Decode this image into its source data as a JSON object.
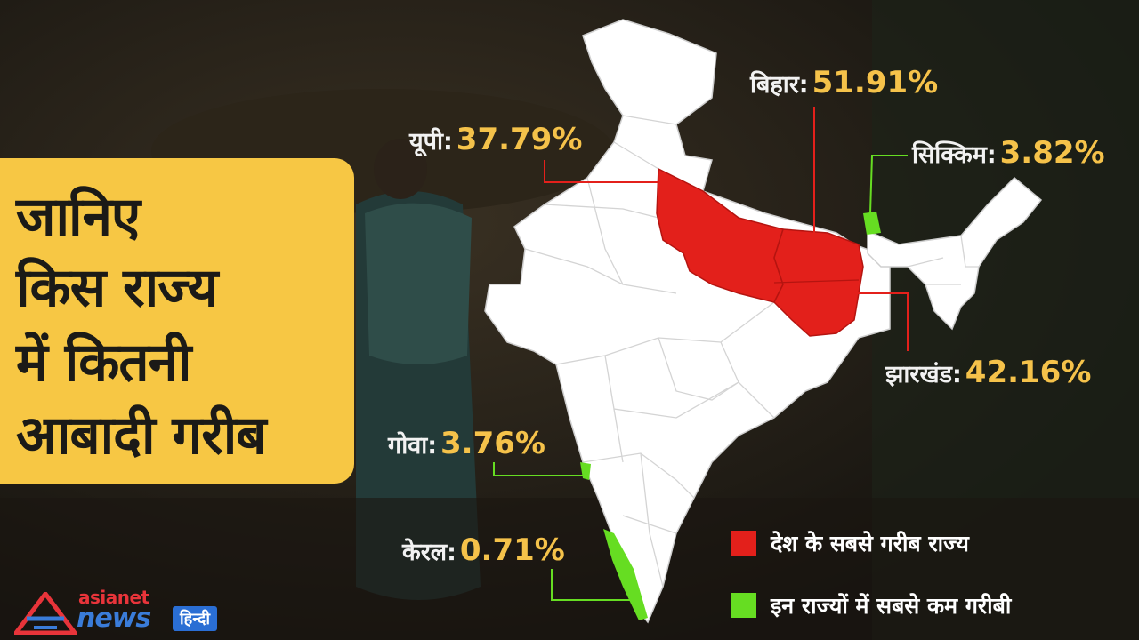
{
  "title_lines": [
    "जानिए",
    "किस राज्य",
    "में कितनी",
    "आबादी गरीब"
  ],
  "states": {
    "up": {
      "name": "यूपी:",
      "value": "37.79%"
    },
    "bihar": {
      "name": "बिहार:",
      "value": "51.91%"
    },
    "sikkim": {
      "name": "सिक्किम:",
      "value": "3.82%"
    },
    "jharkhand": {
      "name": "झारखंड:",
      "value": "42.16%"
    },
    "goa": {
      "name": "गोवा:",
      "value": "3.76%"
    },
    "kerala": {
      "name": "केरल:",
      "value": "0.71%"
    }
  },
  "legend": {
    "poorest": {
      "label": "देश के सबसे गरीब राज्य",
      "color": "#e3201b"
    },
    "least_poor": {
      "label": "इन राज्यों में सबसे कम गरीबी",
      "color": "#66dd22"
    }
  },
  "logo": {
    "brand_top": "asianet",
    "brand_main": "news",
    "language": "हिन्दी"
  },
  "colors": {
    "accent_card": "#f7c744",
    "value_text": "#f5c24a"
  }
}
